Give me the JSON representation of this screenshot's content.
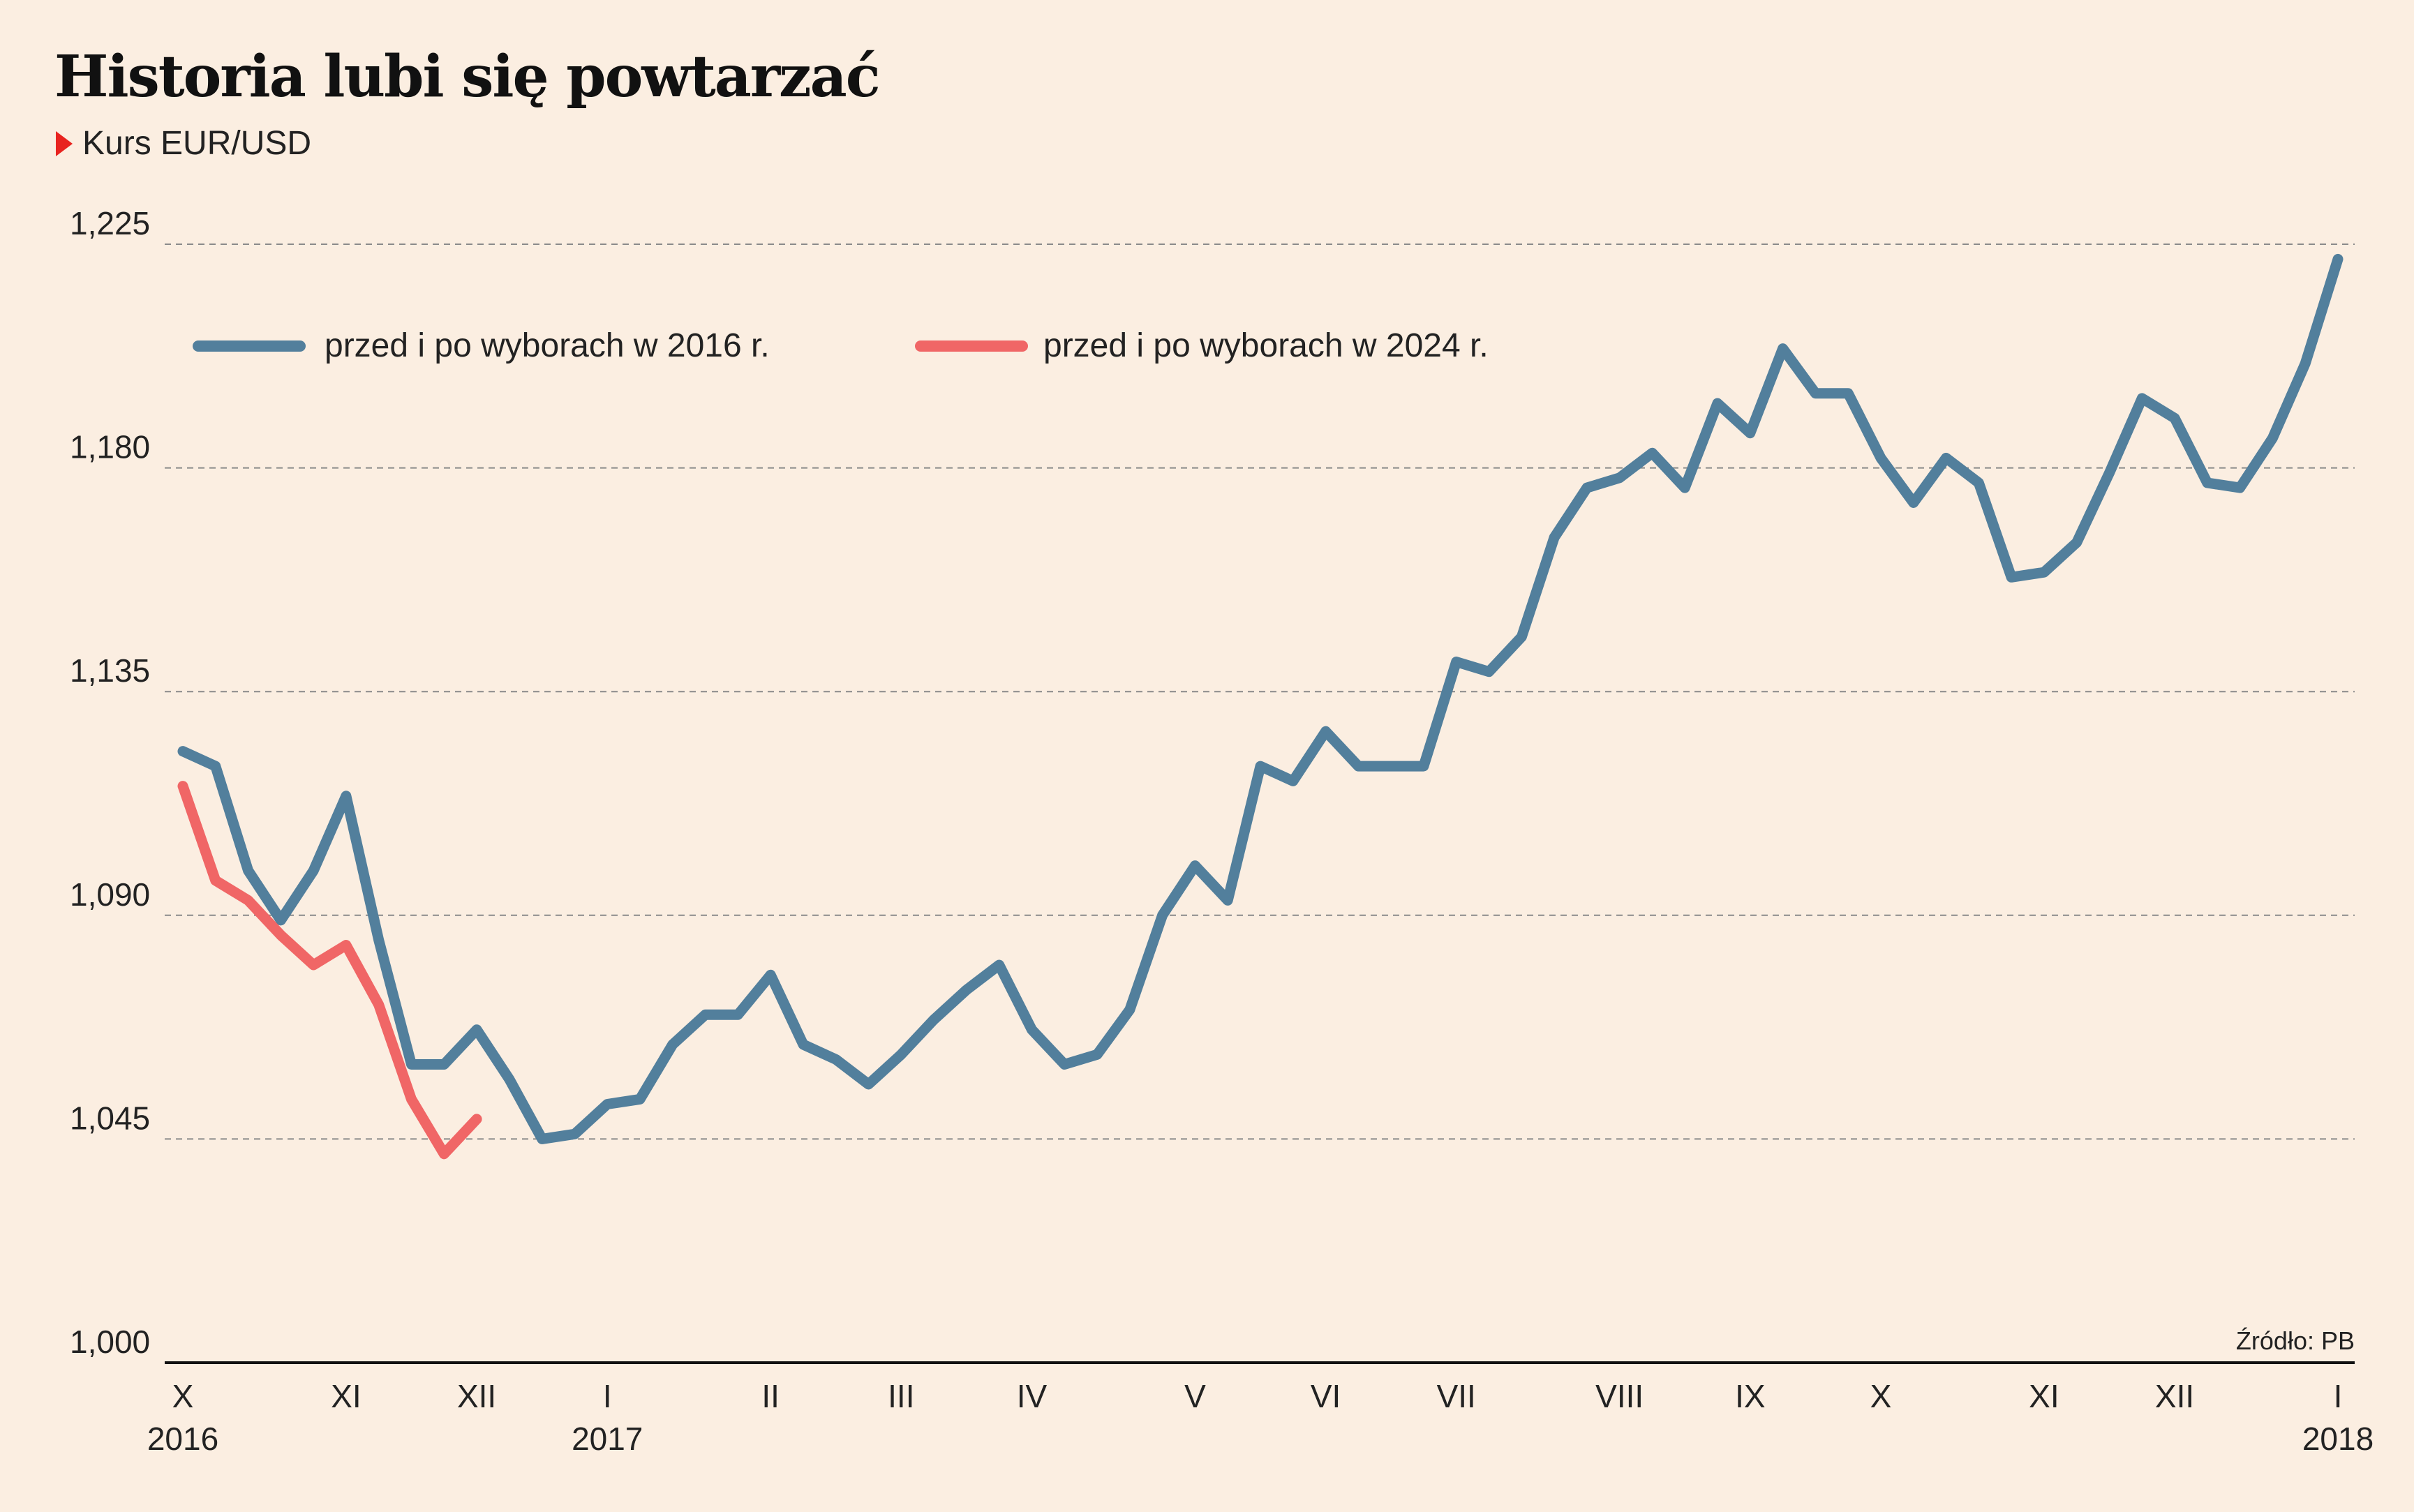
{
  "header": {
    "title": "Historia lubi się powtarzać",
    "subtitle": "Kurs EUR/USD"
  },
  "source": "Źródło: PB",
  "colors": {
    "series_2016": "#527f9c",
    "series_2024": "#f06666",
    "background": "#fbeee1",
    "marker": "#e8231f"
  },
  "chart_data": {
    "type": "line",
    "title": "Historia lubi się powtarzać",
    "subtitle": "Kurs EUR/USD",
    "xlabel": "",
    "ylabel": "",
    "ylim": [
      1.0,
      1.225
    ],
    "yticks": [
      1.0,
      1.045,
      1.09,
      1.135,
      1.18,
      1.225
    ],
    "ytick_labels": [
      "1,000",
      "1,045",
      "1,090",
      "1,135",
      "1,180",
      "1,225"
    ],
    "grid": "horizontal dashed",
    "legend_position": "top-left",
    "x_range": [
      0,
      66
    ],
    "x_ticks": [
      {
        "x": 0,
        "month": "X",
        "year": "2016"
      },
      {
        "x": 5,
        "month": "XI",
        "year": ""
      },
      {
        "x": 9,
        "month": "XII",
        "year": ""
      },
      {
        "x": 13,
        "month": "I",
        "year": "2017"
      },
      {
        "x": 18,
        "month": "II",
        "year": ""
      },
      {
        "x": 22,
        "month": "III",
        "year": ""
      },
      {
        "x": 26,
        "month": "IV",
        "year": ""
      },
      {
        "x": 31,
        "month": "V",
        "year": ""
      },
      {
        "x": 35,
        "month": "VI",
        "year": ""
      },
      {
        "x": 39,
        "month": "VII",
        "year": ""
      },
      {
        "x": 44,
        "month": "VIII",
        "year": ""
      },
      {
        "x": 48,
        "month": "IX",
        "year": ""
      },
      {
        "x": 52,
        "month": "X",
        "year": ""
      },
      {
        "x": 57,
        "month": "XI",
        "year": ""
      },
      {
        "x": 61,
        "month": "XII",
        "year": ""
      },
      {
        "x": 66,
        "month": "I",
        "year": "2018"
      }
    ],
    "series": [
      {
        "name": "przed i po wyborach w 2016 r.",
        "values": [
          1.123,
          1.12,
          1.099,
          1.089,
          1.099,
          1.114,
          1.085,
          1.06,
          1.06,
          1.067,
          1.057,
          1.045,
          1.046,
          1.052,
          1.053,
          1.064,
          1.07,
          1.07,
          1.078,
          1.064,
          1.061,
          1.056,
          1.062,
          1.069,
          1.075,
          1.08,
          1.067,
          1.06,
          1.062,
          1.071,
          1.09,
          1.1,
          1.093,
          1.12,
          1.117,
          1.127,
          1.12,
          1.12,
          1.12,
          1.141,
          1.139,
          1.146,
          1.166,
          1.176,
          1.178,
          1.183,
          1.176,
          1.193,
          1.187,
          1.204,
          1.195,
          1.195,
          1.182,
          1.173,
          1.182,
          1.177,
          1.158,
          1.159,
          1.165,
          1.179,
          1.194,
          1.19,
          1.177,
          1.176,
          1.186,
          1.201,
          1.222
        ]
      },
      {
        "name": "przed i po wyborach w 2024 r.",
        "values": [
          1.116,
          1.097,
          1.093,
          1.086,
          1.08,
          1.084,
          1.072,
          1.053,
          1.042,
          1.049
        ]
      }
    ]
  }
}
